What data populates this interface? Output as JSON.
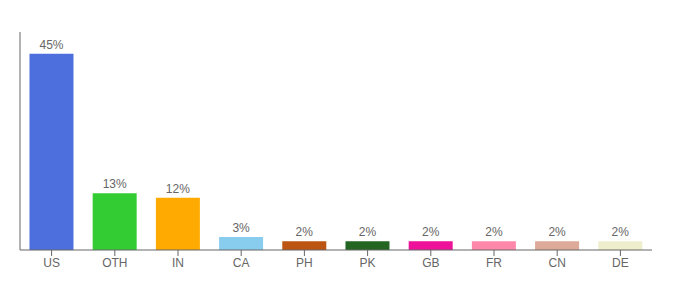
{
  "chart_data": {
    "type": "bar",
    "categories": [
      "US",
      "OTH",
      "IN",
      "CA",
      "PH",
      "PK",
      "GB",
      "FR",
      "CN",
      "DE"
    ],
    "values": [
      45,
      13,
      12,
      3,
      2,
      2,
      2,
      2,
      2,
      2
    ],
    "value_labels": [
      "45%",
      "13%",
      "12%",
      "3%",
      "2%",
      "2%",
      "2%",
      "2%",
      "2%",
      "2%"
    ],
    "colors": [
      "#4d6fdd",
      "#33cc33",
      "#ffaa00",
      "#88ccee",
      "#bb5511",
      "#226622",
      "#ee1199",
      "#ff88aa",
      "#ddaa99",
      "#eeeecc"
    ],
    "ylim": [
      0,
      50
    ],
    "grid": false,
    "data_labels": true,
    "tick_labels": "x"
  }
}
